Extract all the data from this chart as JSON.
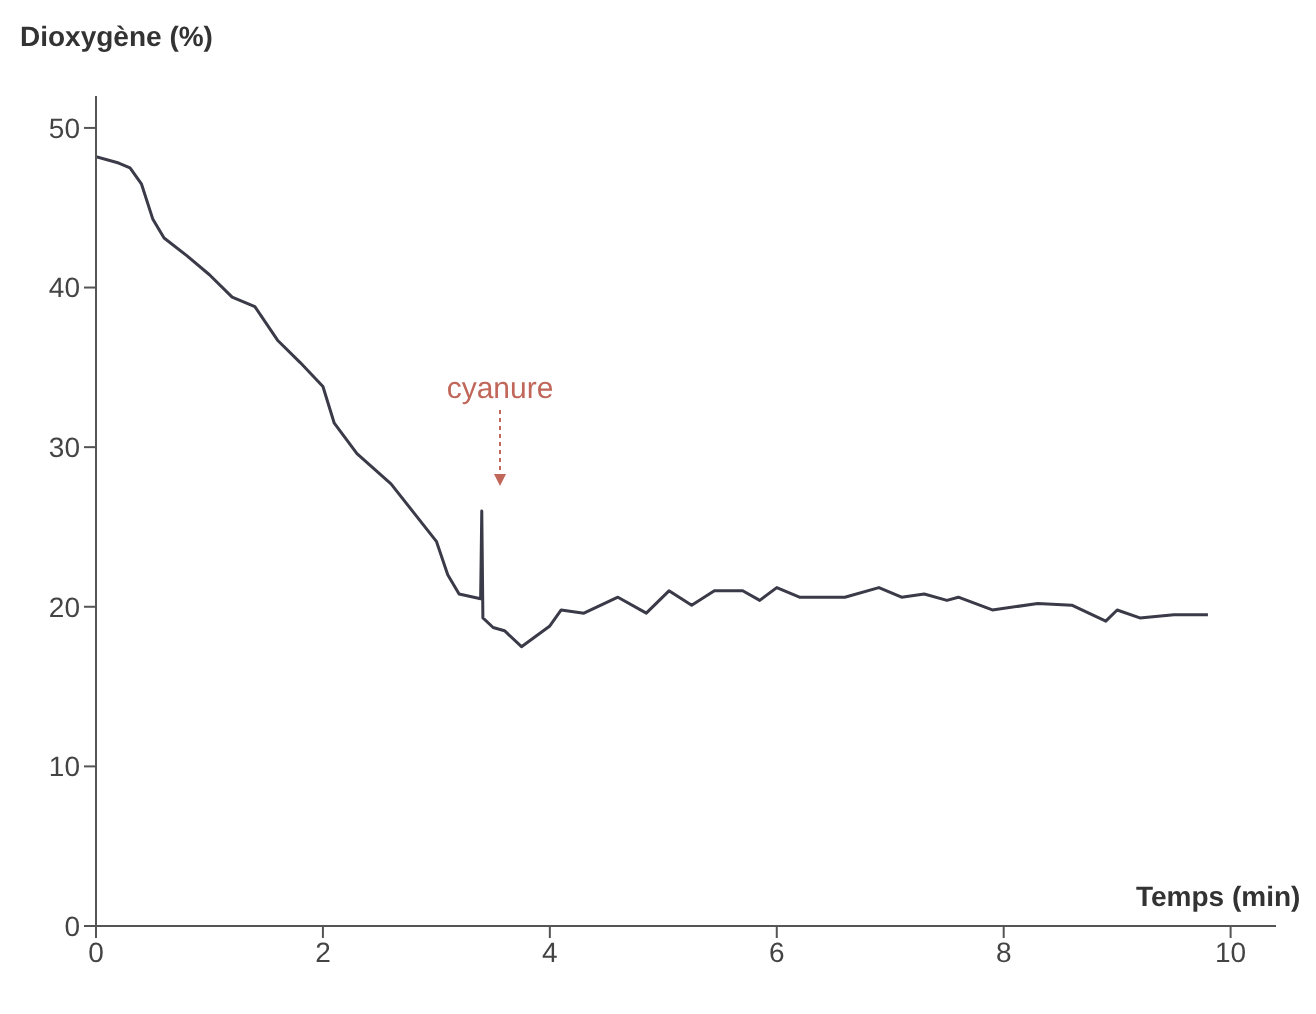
{
  "chart_data": {
    "type": "line",
    "xlabel": "Temps (min)",
    "ylabel": "Dioxygène (%)",
    "xlim": [
      0,
      10.4
    ],
    "xticks": [
      0,
      2,
      4,
      6,
      8,
      10
    ],
    "ylim": [
      0,
      52
    ],
    "yticks": [
      0,
      10,
      20,
      30,
      40,
      50
    ],
    "grid": false,
    "legend": false,
    "marker": "none",
    "line_style": "solid",
    "annotations": [
      "cyanure"
    ],
    "series": [
      {
        "color": "#3a3a48",
        "x": [
          0,
          0.2,
          0.3,
          0.4,
          0.5,
          0.6,
          0.8,
          1.0,
          1.2,
          1.4,
          1.6,
          1.8,
          2.0,
          2.1,
          2.3,
          2.6,
          2.8,
          3.0,
          3.1,
          3.2,
          3.39,
          3.4,
          3.41,
          3.5,
          3.6,
          3.75,
          4.0,
          4.1,
          4.3,
          4.6,
          4.85,
          5.05,
          5.25,
          5.45,
          5.7,
          5.85,
          6.0,
          6.2,
          6.6,
          6.9,
          7.1,
          7.3,
          7.5,
          7.6,
          7.9,
          8.3,
          8.6,
          8.9,
          9.0,
          9.2,
          9.5,
          9.8
        ],
        "values": [
          48.2,
          47.8,
          47.5,
          46.5,
          44.3,
          43.1,
          42,
          40.8,
          39.4,
          38.8,
          36.7,
          35.3,
          33.8,
          31.5,
          29.6,
          27.7,
          25.9,
          24.1,
          22,
          20.8,
          20.5,
          26,
          19.3,
          18.7,
          18.5,
          17.5,
          18.8,
          19.8,
          19.6,
          20.6,
          19.6,
          21,
          20.1,
          21,
          21,
          20.4,
          21.2,
          20.6,
          20.6,
          21.2,
          20.6,
          20.8,
          20.4,
          20.6,
          19.8,
          20.2,
          20.1,
          19.1,
          19.8,
          19.3,
          19.5,
          19.5
        ]
      }
    ]
  }
}
